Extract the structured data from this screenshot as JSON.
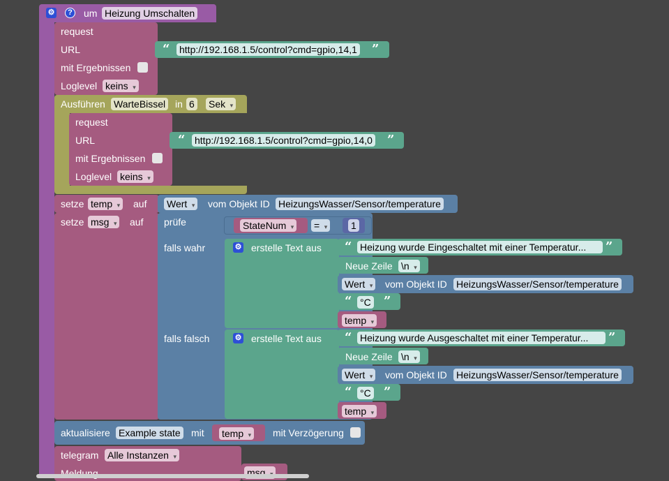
{
  "colors": {
    "function": "#995ba5",
    "request": "#a55b80",
    "timeout": "#a5a55b",
    "variable": "#a55b80",
    "object": "#5b80a5",
    "text": "#5ba58c",
    "stringField": "#d7ecea",
    "background": "#454545"
  },
  "function": {
    "gear_icon": "gear-icon",
    "help_icon": "?",
    "label": "um",
    "name": "Heizung Umschalten"
  },
  "request1": {
    "title": "request",
    "url_label": "URL",
    "url": "http://192.168.1.5/control?cmd=gpio,14,1",
    "results_label": "mit Ergebnissen",
    "loglevel_label": "Loglevel",
    "loglevel": "keins"
  },
  "timeout": {
    "label": "Ausführen",
    "name": "WarteBissel",
    "in_label": "in",
    "value": "6",
    "unit": "Sek"
  },
  "request2": {
    "title": "request",
    "url_label": "URL",
    "url": "http://192.168.1.5/control?cmd=gpio,14,0",
    "results_label": "mit Ergebnissen",
    "loglevel_label": "Loglevel",
    "loglevel": "keins"
  },
  "set_temp": {
    "label": "setze",
    "var": "temp",
    "auf": "auf",
    "attr": "Wert",
    "obj_label": "vom Objekt ID",
    "obj_id": "HeizungsWasser/Sensor/temperature"
  },
  "set_msg": {
    "label": "setze",
    "var": "msg",
    "auf": "auf",
    "check_label": "prüfe",
    "var_state": "StateNum",
    "op": "=",
    "num": "1",
    "if_true": "falls wahr",
    "if_false": "falls falsch"
  },
  "text_true": {
    "label": "erstelle Text aus",
    "str1": "Heizung wurde Eingeschaltet mit einer Temperatur...",
    "newline_label": "Neue Zeile",
    "newline": "\\n",
    "attr": "Wert",
    "obj_label": "vom Objekt ID",
    "obj_id": "HeizungsWasser/Sensor/temperature",
    "unit": "°C",
    "var": "temp"
  },
  "text_false": {
    "label": "erstelle Text aus",
    "str1": "Heizung wurde Ausgeschaltet mit einer Temperatur...",
    "newline_label": "Neue Zeile",
    "newline": "\\n",
    "attr": "Wert",
    "obj_label": "vom Objekt ID",
    "obj_id": "HeizungsWasser/Sensor/temperature",
    "unit": "°C",
    "var": "temp"
  },
  "update": {
    "label": "aktualisiere",
    "state": "Example state",
    "mit": "mit",
    "var": "temp",
    "delay_label": "mit Verzögerung"
  },
  "telegram": {
    "label": "telegram",
    "instances": "Alle Instanzen",
    "msg_label": "Meldung",
    "var": "msg"
  }
}
